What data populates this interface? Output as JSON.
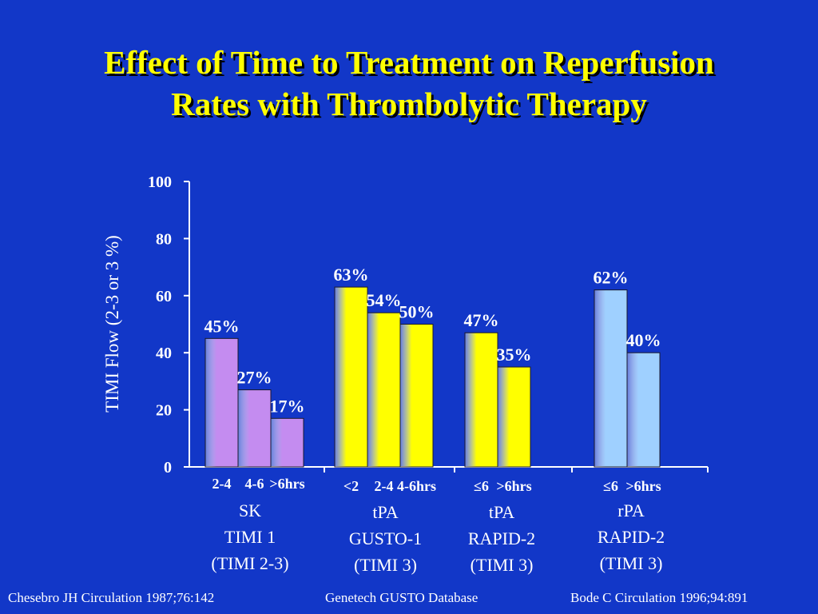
{
  "title": {
    "line1": "Effect of Time to Treatment on Reperfusion",
    "line2": "Rates with Thrombolytic Therapy"
  },
  "colors": {
    "background": "#1237c8",
    "title": "#ffff00",
    "sk_bar": "#c48cf0",
    "tpa_bar": "#ffff00",
    "rpa_bar": "#9fd0ff"
  },
  "chart_data": {
    "type": "bar",
    "ylabel": "TIMI Flow (2-3 or 3 %)",
    "ylim": [
      0,
      100
    ],
    "yticks": [
      "0",
      "20",
      "40",
      "60",
      "80",
      "100"
    ],
    "grid": false,
    "groups": [
      {
        "name_lines": [
          "SK",
          "TIMI 1",
          "(TIMI 2-3)"
        ],
        "color": "#c48cf0",
        "categories": [
          "2-4",
          "4-6",
          ">6hrs"
        ],
        "values": [
          45,
          27,
          17
        ],
        "labels": [
          "45%",
          "27%",
          "17%"
        ]
      },
      {
        "name_lines": [
          "tPA",
          "GUSTO-1",
          "(TIMI 3)"
        ],
        "color": "#ffff00",
        "categories": [
          "<2",
          "2-4",
          "4-6hrs"
        ],
        "values": [
          63,
          54,
          50
        ],
        "labels": [
          "63%",
          "54%",
          "50%"
        ]
      },
      {
        "name_lines": [
          "tPA",
          "RAPID-2",
          "(TIMI 3)"
        ],
        "color": "#ffff00",
        "categories": [
          "≤6",
          ">6hrs"
        ],
        "values": [
          47,
          35
        ],
        "labels": [
          "47%",
          "35%"
        ]
      },
      {
        "name_lines": [
          "rPA",
          "RAPID-2",
          "(TIMI 3)"
        ],
        "color": "#9fd0ff",
        "categories": [
          "≤6",
          ">6hrs"
        ],
        "values": [
          62,
          40
        ],
        "labels": [
          "62%",
          "40%"
        ]
      }
    ]
  },
  "footer": {
    "left": "Chesebro JH Circulation 1987;76:142",
    "center": "Genetech GUSTO Database",
    "right": "Bode C Circulation 1996;94:891"
  }
}
